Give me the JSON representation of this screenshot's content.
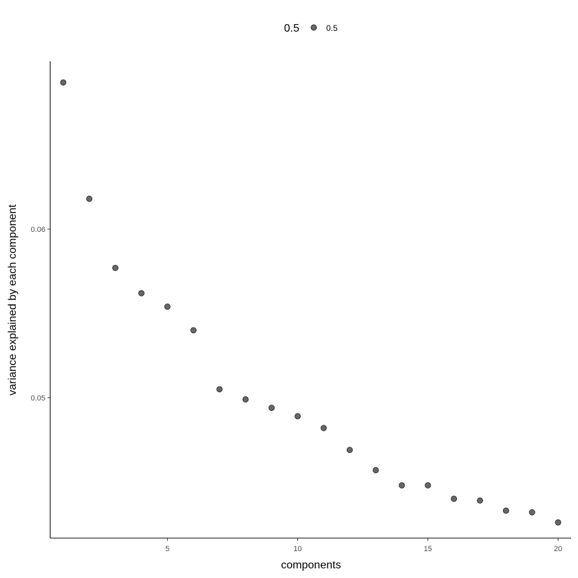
{
  "chart_data": {
    "type": "scatter",
    "xlabel": "components",
    "ylabel": "variance explained by each component",
    "xlim": [
      0.5,
      20.5
    ],
    "ylim": [
      0.04167,
      0.06996
    ],
    "x_ticks": [
      5,
      10,
      15,
      20
    ],
    "x_tick_labels": [
      "5",
      "10",
      "15",
      "20"
    ],
    "y_ticks": [
      0.05,
      0.06
    ],
    "y_tick_labels": [
      "0.05",
      "0.06"
    ],
    "grid": false,
    "legend": {
      "title": "0.5",
      "entries": [
        "0.5"
      ],
      "placement": "top"
    },
    "point_color": "#4d4d4d",
    "point_alpha": 0.85,
    "series": [
      {
        "x": [
          1,
          2,
          3,
          4,
          5,
          6,
          7,
          8,
          9,
          10,
          11,
          12,
          13,
          14,
          15,
          16,
          17,
          18,
          19,
          20
        ],
        "y": [
          0.0687,
          0.0618,
          0.0577,
          0.0562,
          0.0554,
          0.054,
          0.0505,
          0.0499,
          0.0494,
          0.0489,
          0.0482,
          0.0469,
          0.0457,
          0.0448,
          0.0448,
          0.044,
          0.0439,
          0.0433,
          0.0432,
          0.0426
        ]
      }
    ]
  }
}
